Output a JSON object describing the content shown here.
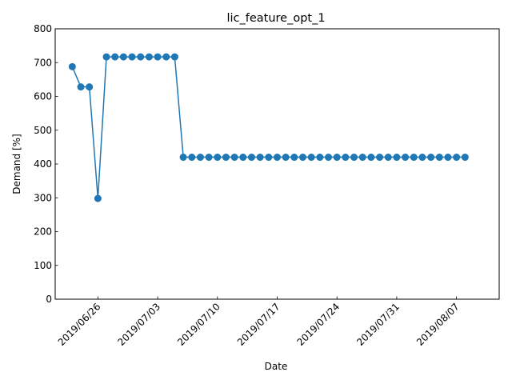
{
  "chart_data": {
    "type": "line",
    "title": "lic_feature_opt_1",
    "xlabel": "Date",
    "ylabel": "Demand [%]",
    "x_start": "2019/06/23",
    "xlim": [
      "2019/06/21",
      "2019/08/12"
    ],
    "ylim": [
      0,
      800
    ],
    "yticks": [
      0,
      100,
      200,
      300,
      400,
      500,
      600,
      700,
      800
    ],
    "xticks": [
      "2019/06/26",
      "2019/07/03",
      "2019/07/10",
      "2019/07/17",
      "2019/07/24",
      "2019/07/31",
      "2019/08/07"
    ],
    "color": "#1f77b4",
    "grid": false,
    "series": [
      {
        "name": "",
        "values": [
          688,
          628,
          628,
          298,
          717,
          717,
          717,
          717,
          717,
          717,
          717,
          717,
          717,
          420,
          420,
          420,
          420,
          420,
          420,
          420,
          420,
          420,
          420,
          420,
          420,
          420,
          420,
          420,
          420,
          420,
          420,
          420,
          420,
          420,
          420,
          420,
          420,
          420,
          420,
          420,
          420,
          420,
          420,
          420,
          420,
          420,
          420
        ]
      }
    ]
  }
}
